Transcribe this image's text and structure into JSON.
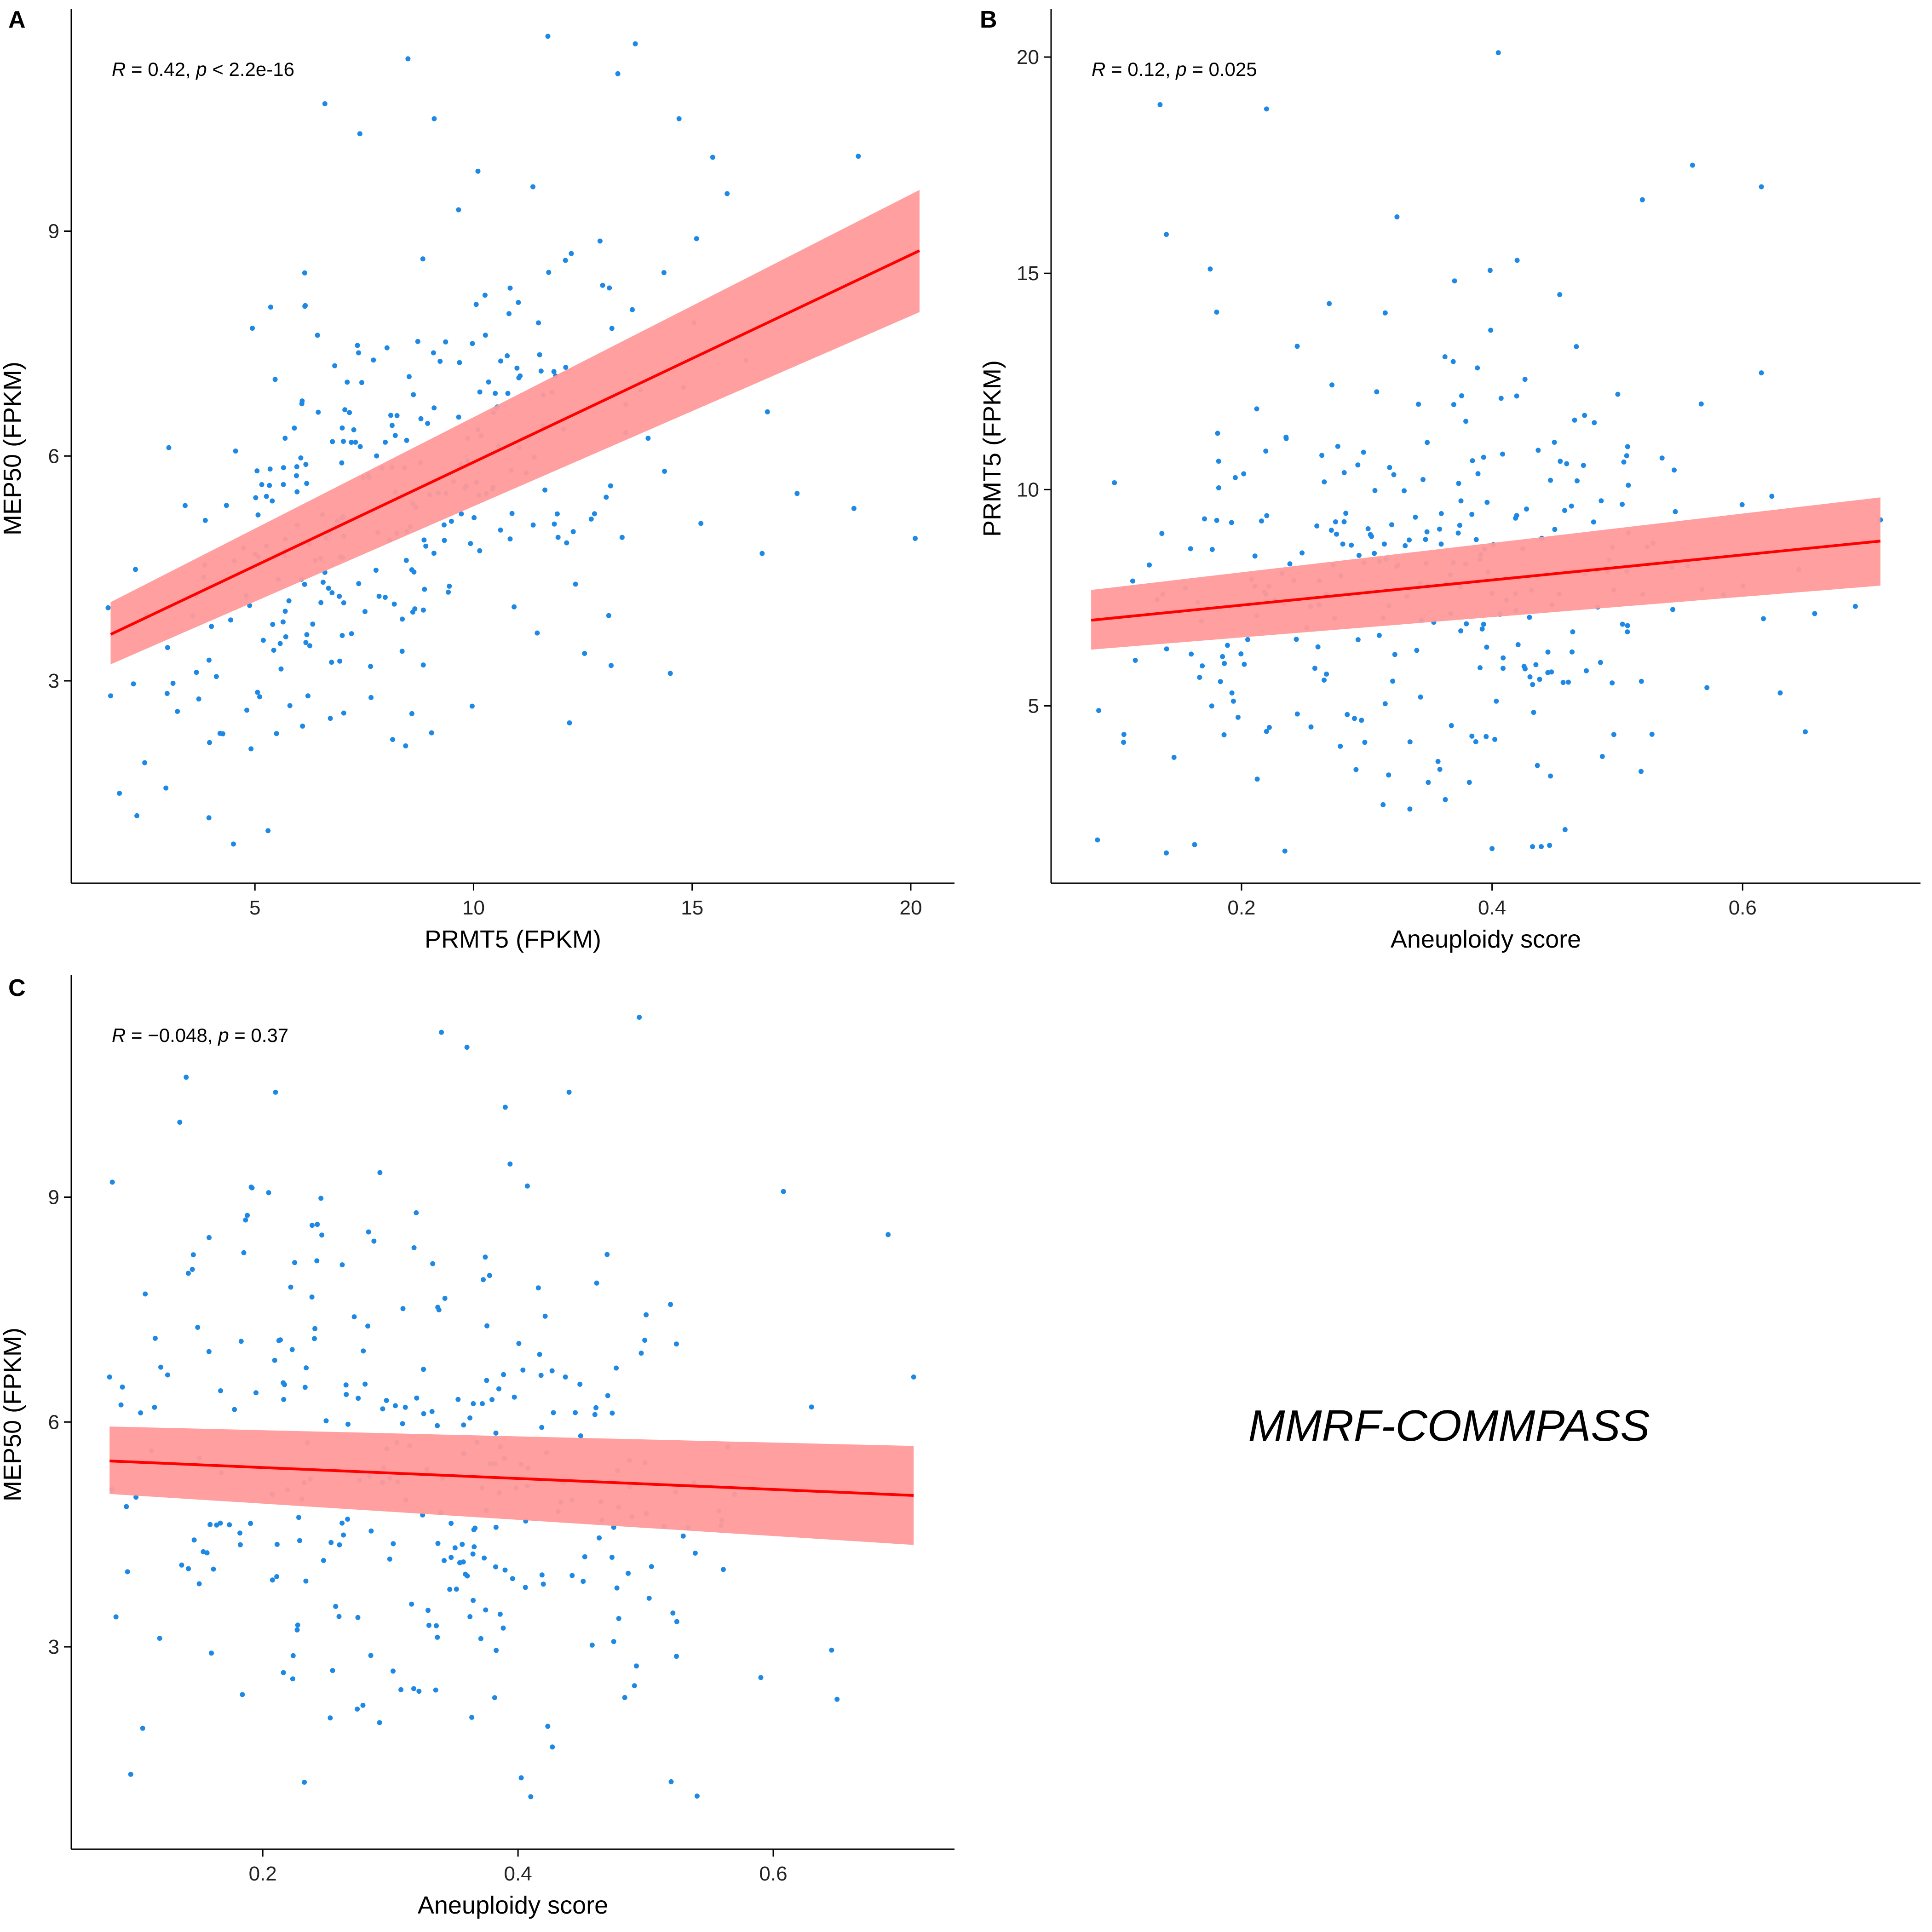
{
  "colors": {
    "point": "#1e88e5",
    "fit_line": "#ff0000",
    "ci_band": "#ff9a9a",
    "axis": "#000000"
  },
  "caption": "MMRF-COMMPASS",
  "chart_data": [
    {
      "panel_label": "A",
      "type": "scatter",
      "xlabel": "PRMT5 (FPKM)",
      "ylabel": "MEP50 (FPKM)",
      "xlim": [
        0.8,
        21.0
      ],
      "ylim": [
        0.3,
        11.9
      ],
      "x_ticks": [
        5,
        10,
        15,
        20
      ],
      "y_ticks": [
        3,
        6,
        9
      ],
      "annotation": {
        "r": "0.42",
        "p_op": "<",
        "p": "2.2e-16"
      },
      "fit": {
        "x": [
          1.7,
          20.2
        ],
        "y": [
          3.62,
          8.74
        ]
      },
      "ci": {
        "lower": [
          3.22,
          7.92
        ],
        "upper": [
          4.05,
          9.55
        ]
      },
      "seed": 11,
      "n_points": 320,
      "cloud": {
        "x_center": 8.0,
        "x_spread": 3.2,
        "x_min": 1.6,
        "x_max": 20.2,
        "resid_sd": 1.45,
        "y_min": 0.8,
        "y_max": 11.7
      },
      "points": [
        [
          11.7,
          11.6
        ],
        [
          13.7,
          11.5
        ],
        [
          13.3,
          11.1
        ],
        [
          8.5,
          11.3
        ],
        [
          6.6,
          10.7
        ],
        [
          14.7,
          10.5
        ],
        [
          9.1,
          10.5
        ],
        [
          7.4,
          10.3
        ],
        [
          18.8,
          10.0
        ],
        [
          10.1,
          9.8
        ],
        [
          20.1,
          4.9
        ],
        [
          18.7,
          5.3
        ],
        [
          16.6,
          4.7
        ],
        [
          17.4,
          5.5
        ],
        [
          15.8,
          9.5
        ],
        [
          15.1,
          8.9
        ],
        [
          15.2,
          5.1
        ],
        [
          14.5,
          3.1
        ],
        [
          1.7,
          2.8
        ],
        [
          2.3,
          1.2
        ],
        [
          5.3,
          1.0
        ],
        [
          1.9,
          1.5
        ]
      ]
    },
    {
      "panel_label": "B",
      "type": "scatter",
      "xlabel": "Aneuploidy score",
      "ylabel": "PRMT5 (FPKM)",
      "xlim": [
        0.048,
        0.742
      ],
      "ylim": [
        0.9,
        21.0
      ],
      "x_ticks": [
        0.2,
        0.4,
        0.6
      ],
      "y_ticks": [
        5,
        10,
        15,
        20
      ],
      "annotation": {
        "r": "0.12",
        "p_op": "=",
        "p": "0.025"
      },
      "fit": {
        "x": [
          0.08,
          0.71
        ],
        "y": [
          6.98,
          8.81
        ]
      },
      "ci": {
        "lower": [
          6.3,
          7.78
        ],
        "upper": [
          7.68,
          9.82
        ]
      },
      "seed": 23,
      "n_points": 320,
      "cloud": {
        "x_center": 0.33,
        "x_spread": 0.13,
        "x_min": 0.08,
        "x_max": 0.71,
        "resid_sd": 2.8,
        "y_min": 1.6,
        "y_max": 19.0
      },
      "points": [
        [
          0.405,
          20.1
        ],
        [
          0.135,
          18.9
        ],
        [
          0.22,
          18.8
        ],
        [
          0.56,
          17.5
        ],
        [
          0.615,
          17.0
        ],
        [
          0.52,
          16.7
        ],
        [
          0.14,
          15.9
        ],
        [
          0.175,
          15.1
        ],
        [
          0.42,
          15.3
        ],
        [
          0.27,
          14.3
        ],
        [
          0.63,
          5.3
        ],
        [
          0.65,
          4.4
        ],
        [
          0.69,
          7.3
        ],
        [
          0.71,
          9.3
        ],
        [
          0.085,
          1.9
        ],
        [
          0.14,
          1.6
        ],
        [
          0.4,
          1.7
        ]
      ]
    },
    {
      "panel_label": "C",
      "type": "scatter",
      "xlabel": "Aneuploidy score",
      "ylabel": "MEP50 (FPKM)",
      "xlim": [
        0.05,
        0.742
      ],
      "ylim": [
        0.3,
        11.9
      ],
      "x_ticks": [
        0.2,
        0.4,
        0.6
      ],
      "y_ticks": [
        3,
        6,
        9
      ],
      "annotation": {
        "r": "−0.048",
        "p_op": "=",
        "p": "0.37"
      },
      "fit": {
        "x": [
          0.08,
          0.71
        ],
        "y": [
          5.48,
          5.02
        ]
      },
      "ci": {
        "lower": [
          5.04,
          4.36
        ],
        "upper": [
          5.94,
          5.68
        ]
      },
      "seed": 37,
      "n_points": 320,
      "cloud": {
        "x_center": 0.33,
        "x_spread": 0.13,
        "x_min": 0.08,
        "x_max": 0.71,
        "resid_sd": 1.75,
        "y_min": 0.9,
        "y_max": 10.8
      },
      "points": [
        [
          0.495,
          11.4
        ],
        [
          0.34,
          11.2
        ],
        [
          0.36,
          11.0
        ],
        [
          0.14,
          10.6
        ],
        [
          0.21,
          10.4
        ],
        [
          0.44,
          10.4
        ],
        [
          0.39,
          10.2
        ],
        [
          0.135,
          10.0
        ],
        [
          0.69,
          8.5
        ],
        [
          0.71,
          6.6
        ],
        [
          0.65,
          2.3
        ],
        [
          0.63,
          6.2
        ],
        [
          0.52,
          1.2
        ],
        [
          0.41,
          1.0
        ],
        [
          0.085,
          3.4
        ],
        [
          0.08,
          6.6
        ]
      ]
    }
  ]
}
